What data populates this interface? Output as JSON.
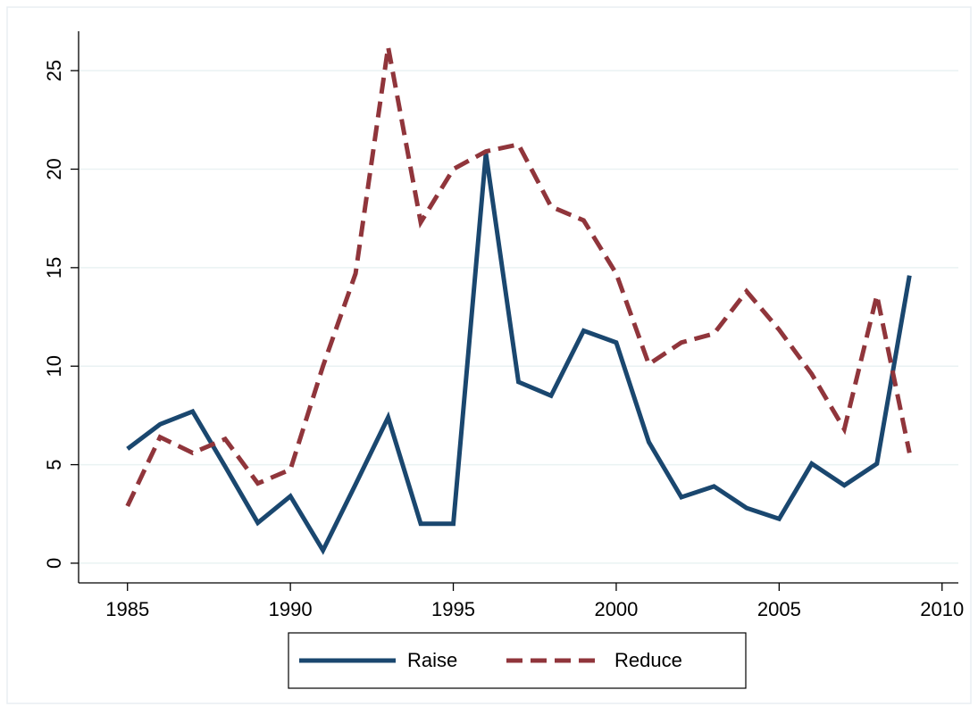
{
  "chart_data": {
    "type": "line",
    "x": [
      1985,
      1986,
      1987,
      1988,
      1989,
      1990,
      1991,
      1992,
      1993,
      1994,
      1995,
      1996,
      1997,
      1998,
      1999,
      2000,
      2001,
      2002,
      2003,
      2004,
      2005,
      2006,
      2007,
      2008,
      2009
    ],
    "series": [
      {
        "name": "Raise",
        "color": "#1a476f",
        "dash": "solid",
        "values": [
          5.8,
          7.05,
          7.7,
          4.9,
          2.05,
          3.4,
          0.65,
          4.0,
          7.4,
          2.0,
          2.0,
          20.8,
          9.2,
          8.5,
          11.8,
          11.2,
          6.15,
          3.35,
          3.9,
          2.8,
          2.25,
          5.05,
          3.95,
          5.05,
          14.6
        ]
      },
      {
        "name": "Reduce",
        "color": "#90353b",
        "dash": "dashed",
        "values": [
          2.9,
          6.4,
          5.6,
          6.3,
          4.05,
          4.75,
          10.0,
          14.7,
          26.2,
          17.3,
          20.0,
          20.9,
          21.25,
          18.1,
          17.4,
          14.7,
          10.1,
          11.2,
          11.65,
          13.8,
          11.85,
          9.6,
          6.8,
          13.6,
          5.6
        ]
      }
    ],
    "xlim": [
      1983.5,
      2010.5
    ],
    "xticks": [
      1985,
      1990,
      1995,
      2000,
      2005,
      2010
    ],
    "ylim": [
      -1,
      27
    ],
    "yticks": [
      0,
      5,
      10,
      15,
      20,
      25
    ],
    "grid": true,
    "legend": "bottom"
  }
}
